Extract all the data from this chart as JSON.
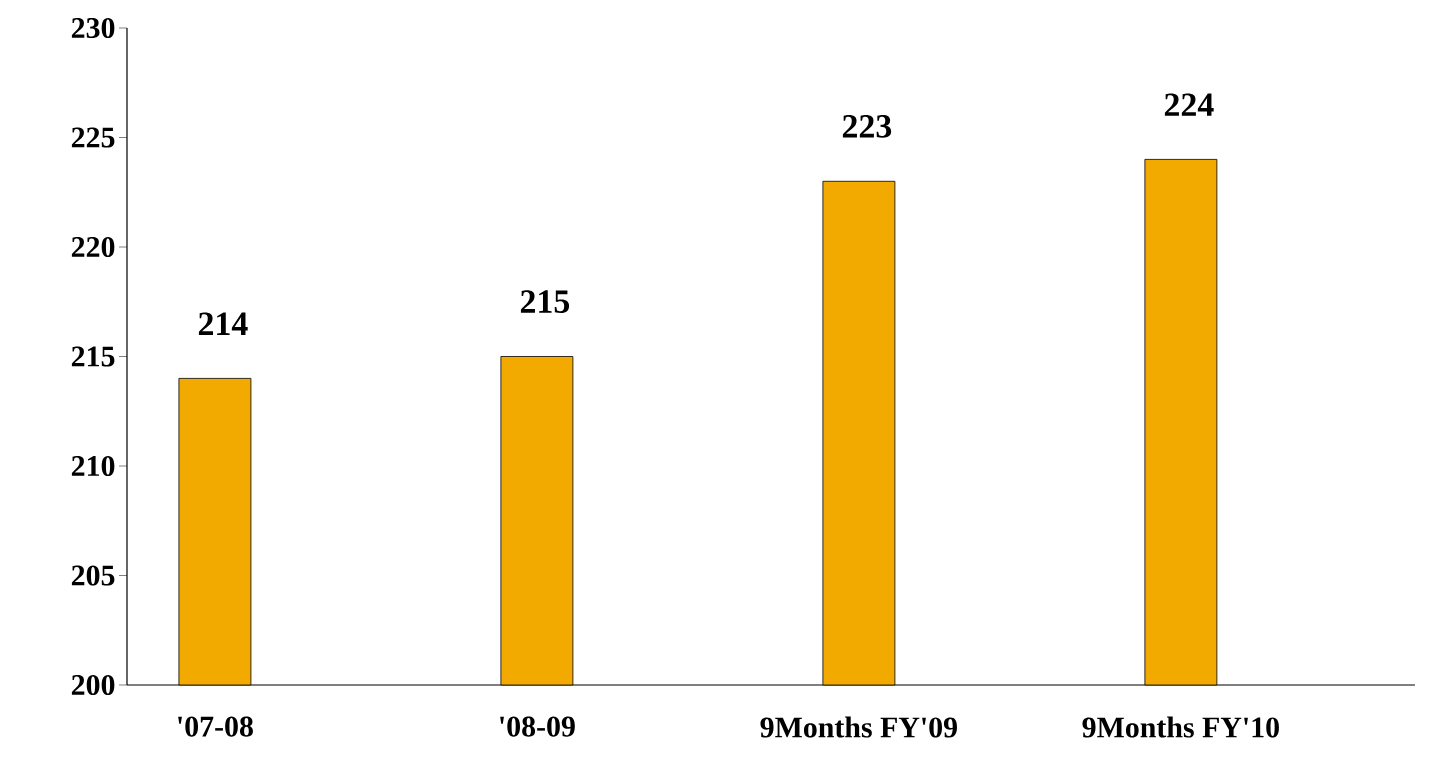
{
  "chart_data": {
    "type": "bar",
    "categories": [
      "'07-08",
      "'08-09",
      "9Months FY'09",
      "9Months FY'10"
    ],
    "values": [
      214,
      215,
      223,
      224
    ],
    "color": "#f2a900",
    "ylim": [
      200,
      230
    ],
    "yticks": [
      200,
      205,
      210,
      215,
      220,
      225,
      230
    ],
    "data_labels": true
  }
}
